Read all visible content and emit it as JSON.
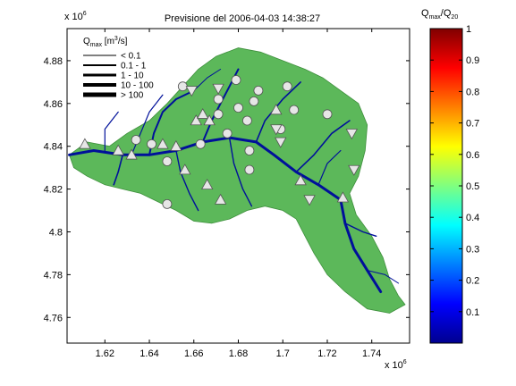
{
  "chart_data": [
    {
      "type": "map",
      "title": "Previsione del 2006-04-03 14:38:27",
      "xlabel": "",
      "ylabel": "",
      "x_exponent": "x 10",
      "x_exponent_power": "6",
      "y_exponent": "x 10",
      "y_exponent_power": "6",
      "xlim": [
        1.603,
        1.757
      ],
      "ylim": [
        4.748,
        4.895
      ],
      "x_ticks": [
        "1.62",
        "1.64",
        "1.66",
        "1.68",
        "1.7",
        "1.72",
        "1.74"
      ],
      "y_ticks": [
        "4.76",
        "4.78",
        "4.8",
        "4.82",
        "4.84",
        "4.86",
        "4.88"
      ],
      "basin_color": "#5cb85a",
      "river_color": "#00109a",
      "legend": {
        "title_prefix": "Q",
        "title_sub": "max",
        "title_suffix": " [m",
        "title_unit_sup": "3",
        "title_end": "/s]",
        "entries": [
          "< 0.1",
          "0.1 - 1",
          "1 - 10",
          "10 - 100",
          "> 100"
        ],
        "line_widths_note": "thicker line = larger discharge"
      },
      "markers": {
        "triangles_up": [
          [
            1.611,
            4.841
          ],
          [
            1.626,
            4.838
          ],
          [
            1.632,
            4.836
          ],
          [
            1.646,
            4.841
          ],
          [
            1.652,
            4.84
          ],
          [
            1.661,
            4.852
          ],
          [
            1.664,
            4.855
          ],
          [
            1.667,
            4.852
          ],
          [
            1.672,
            4.815
          ],
          [
            1.666,
            4.822
          ],
          [
            1.656,
            4.829
          ],
          [
            1.697,
            4.857
          ],
          [
            1.708,
            4.824
          ],
          [
            1.727,
            4.816
          ]
        ],
        "triangles_down": [
          [
            1.671,
            4.867
          ],
          [
            1.659,
            4.866
          ],
          [
            1.697,
            4.848
          ],
          [
            1.699,
            4.842
          ],
          [
            1.712,
            4.815
          ],
          [
            1.732,
            4.829
          ],
          [
            1.731,
            4.846
          ]
        ],
        "circles": [
          [
            1.634,
            4.843
          ],
          [
            1.641,
            4.841
          ],
          [
            1.648,
            4.833
          ],
          [
            1.663,
            4.841
          ],
          [
            1.671,
            4.855
          ],
          [
            1.675,
            4.846
          ],
          [
            1.68,
            4.858
          ],
          [
            1.687,
            4.861
          ],
          [
            1.684,
            4.852
          ],
          [
            1.689,
            4.866
          ],
          [
            1.671,
            4.862
          ],
          [
            1.655,
            4.868
          ],
          [
            1.679,
            4.871
          ],
          [
            1.705,
            4.857
          ],
          [
            1.702,
            4.868
          ],
          [
            1.72,
            4.855
          ],
          [
            1.699,
            4.848
          ],
          [
            1.685,
            4.838
          ],
          [
            1.648,
            4.813
          ],
          [
            1.685,
            4.829
          ]
        ]
      }
    },
    {
      "type": "colorbar",
      "title_prefix": "Q",
      "title_sub1": "max",
      "title_mid": "/Q",
      "title_sub2": "20",
      "ylim": [
        0,
        1
      ],
      "ticks": [
        "0.1",
        "0.2",
        "0.3",
        "0.4",
        "0.5",
        "0.6",
        "0.7",
        "0.8",
        "0.9",
        "1"
      ],
      "colormap": "jet"
    }
  ]
}
